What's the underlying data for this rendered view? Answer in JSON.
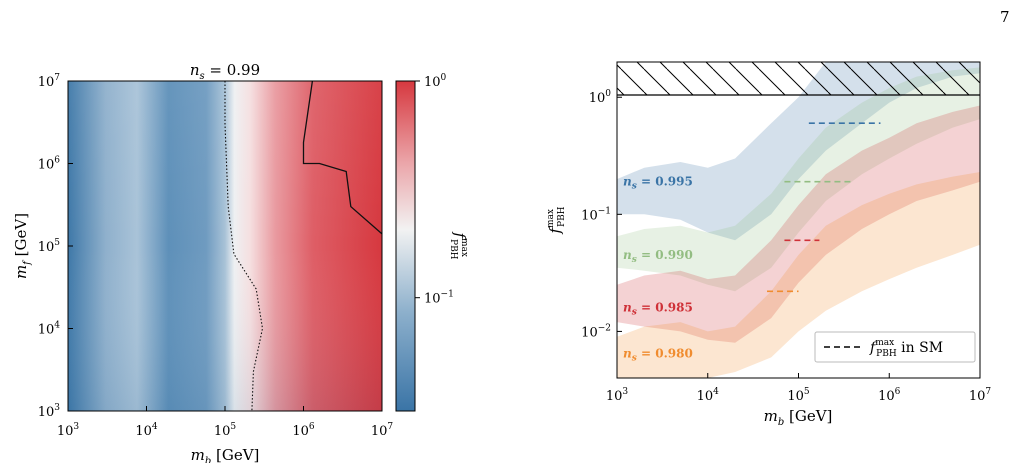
{
  "page": {
    "number": "7"
  },
  "colors": {
    "blue": "#3a74a6",
    "green": "#93bd82",
    "red": "#cf3138",
    "orange": "#f08c2f"
  },
  "chart_data": [
    {
      "type": "heatmap",
      "title": "n_s = 0.99",
      "xlabel": "m_b [GeV]",
      "ylabel": "m_f [GeV]",
      "x_scale": "log",
      "y_scale": "log",
      "xlim": [
        1000,
        10000000
      ],
      "ylim": [
        1000,
        10000000
      ],
      "x_tick_values": [
        1000,
        10000,
        100000,
        1000000,
        10000000
      ],
      "x_tick_labels": [
        "10^3",
        "10^4",
        "10^5",
        "10^6",
        "10^7"
      ],
      "y_tick_values": [
        1000,
        10000,
        100000,
        1000000,
        10000000
      ],
      "y_tick_labels": [
        "10^3",
        "10^4",
        "10^5",
        "10^6",
        "10^7"
      ],
      "colorbar": {
        "label": "f_PBH^max",
        "scale": "log",
        "tick_values": [
          0.1,
          1
        ],
        "tick_labels": [
          "10^-1",
          "10^0"
        ],
        "range": [
          0.03,
          1
        ]
      },
      "contour_dotted": [
        [
          100000,
          10000000
        ],
        [
          100000,
          3000000
        ],
        [
          110000,
          300000
        ],
        [
          130000,
          80000
        ],
        [
          250000,
          30000
        ],
        [
          300000,
          10000
        ],
        [
          230000,
          3000
        ],
        [
          220000,
          1000
        ]
      ],
      "contour_solid": [
        [
          1300000,
          10000000
        ],
        [
          1000000,
          1800000
        ],
        [
          1000000,
          1000000
        ],
        [
          1600000,
          1000000
        ],
        [
          3500000,
          800000
        ],
        [
          4000000,
          300000
        ],
        [
          10000000,
          140000
        ]
      ]
    },
    {
      "type": "area",
      "title": "",
      "xlabel": "m_b [GeV]",
      "ylabel": "f_PBH^max",
      "x_scale": "log",
      "y_scale": "log",
      "xlim": [
        1000,
        10000000
      ],
      "ylim": [
        0.004,
        2
      ],
      "x_tick_values": [
        1000,
        10000,
        100000,
        1000000,
        10000000
      ],
      "x_tick_labels": [
        "10^3",
        "10^4",
        "10^5",
        "10^6",
        "10^7"
      ],
      "y_tick_values": [
        0.01,
        0.1,
        1
      ],
      "y_tick_labels": [
        "10^-2",
        "10^-1",
        "10^0"
      ],
      "hatched_region_above": 1.0,
      "x": [
        1000,
        2000,
        5000,
        10000,
        20000,
        50000,
        100000,
        200000,
        500000,
        1000000,
        2000000,
        5000000,
        10000000
      ],
      "series": [
        {
          "name": "n_s = 0.995",
          "color_key": "blue",
          "upper": [
            0.2,
            0.25,
            0.28,
            0.25,
            0.3,
            0.6,
            1.0,
            2.0,
            2.0,
            2.0,
            2.0,
            2.0,
            2.0
          ],
          "lower": [
            0.1,
            0.1,
            0.09,
            0.07,
            0.06,
            0.1,
            0.2,
            0.35,
            0.6,
            0.9,
            1.2,
            1.5,
            1.6
          ],
          "sm_x": [
            130000,
            800000
          ],
          "sm_value": 0.6
        },
        {
          "name": "n_s = 0.990",
          "color_key": "green",
          "upper": [
            0.065,
            0.075,
            0.08,
            0.07,
            0.08,
            0.15,
            0.3,
            0.55,
            0.9,
            1.2,
            1.5,
            1.7,
            1.8
          ],
          "lower": [
            0.035,
            0.033,
            0.03,
            0.025,
            0.022,
            0.035,
            0.07,
            0.13,
            0.22,
            0.3,
            0.4,
            0.55,
            0.65
          ],
          "sm_x": [
            70000,
            400000
          ],
          "sm_value": 0.19
        },
        {
          "name": "n_s = 0.985",
          "color_key": "red",
          "upper": [
            0.025,
            0.03,
            0.033,
            0.028,
            0.03,
            0.06,
            0.12,
            0.22,
            0.35,
            0.45,
            0.6,
            0.75,
            0.85
          ],
          "lower": [
            0.012,
            0.011,
            0.01,
            0.0085,
            0.008,
            0.013,
            0.026,
            0.045,
            0.075,
            0.1,
            0.13,
            0.16,
            0.19
          ],
          "sm_x": [
            70000,
            170000
          ],
          "sm_value": 0.06
        },
        {
          "name": "n_s = 0.980",
          "color_key": "orange",
          "upper": [
            0.009,
            0.011,
            0.012,
            0.01,
            0.011,
            0.022,
            0.045,
            0.08,
            0.12,
            0.15,
            0.18,
            0.21,
            0.23
          ],
          "lower": [
            0.004,
            0.004,
            0.004,
            0.004,
            0.0045,
            0.006,
            0.01,
            0.015,
            0.022,
            0.028,
            0.035,
            0.045,
            0.055
          ],
          "sm_x": [
            45000,
            100000
          ],
          "sm_value": 0.022
        }
      ],
      "series_labels": [
        {
          "var": "n",
          "sub": "s",
          "val": " = 0.995",
          "color_key": "blue",
          "y_value": 0.19
        },
        {
          "var": "n",
          "sub": "s",
          "val": " = 0.990",
          "color_key": "green",
          "y_value": 0.045
        },
        {
          "var": "n",
          "sub": "s",
          "val": " = 0.985",
          "color_key": "red",
          "y_value": 0.016
        },
        {
          "var": "n",
          "sub": "s",
          "val": " = 0.980",
          "color_key": "orange",
          "y_value": 0.0065
        }
      ],
      "legend": {
        "placement": "lower-right",
        "label_main": "f",
        "label_sup": "max",
        "label_sub": "PBH",
        "label_suffix": " in SM"
      }
    }
  ]
}
